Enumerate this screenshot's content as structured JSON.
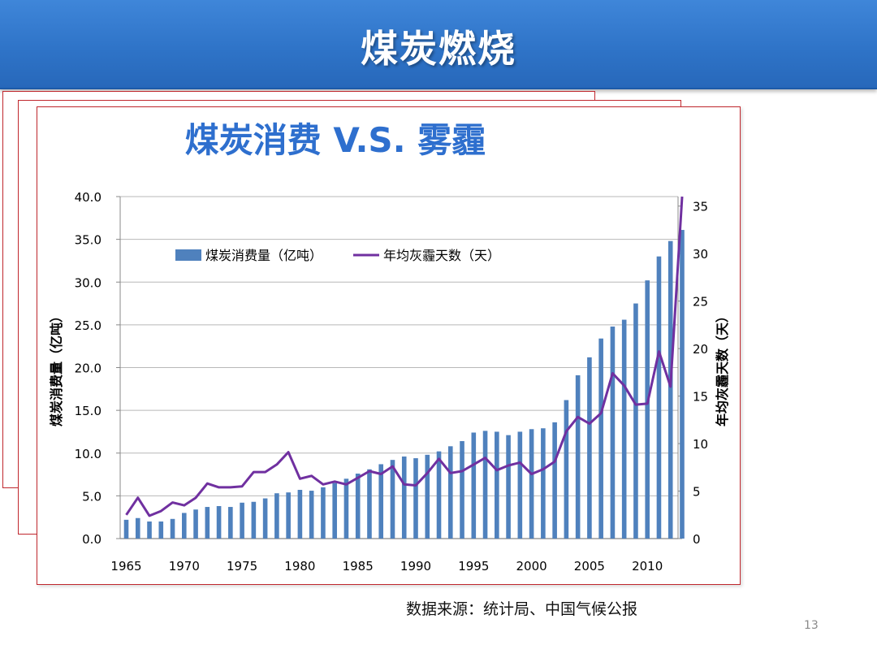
{
  "slide": {
    "title": "煤炭燃烧",
    "source": "数据来源：统计局、中国气候公报",
    "page_number": "13",
    "header_color": "#2f74c8",
    "frame_color": "#c0272d"
  },
  "chart_data": {
    "type": "bar",
    "title": "煤炭消费 V.S. 雾霾",
    "ylabel": "煤炭消费量（亿吨）",
    "y2label": "年均灰霾天数（天）",
    "ylim": [
      0,
      40
    ],
    "y2lim": [
      0,
      36
    ],
    "yticks": [
      "0.0",
      "5.0",
      "10.0",
      "15.0",
      "20.0",
      "25.0",
      "30.0",
      "35.0",
      "40.0"
    ],
    "y2ticks": [
      "0",
      "5",
      "10",
      "15",
      "20",
      "25",
      "30",
      "35"
    ],
    "xticks": [
      "1965",
      "1970",
      "1975",
      "1980",
      "1985",
      "1990",
      "1995",
      "2000",
      "2005",
      "2010"
    ],
    "grid": true,
    "legend": "top-left",
    "x": [
      1965,
      1966,
      1967,
      1968,
      1969,
      1970,
      1971,
      1972,
      1973,
      1974,
      1975,
      1976,
      1977,
      1978,
      1979,
      1980,
      1981,
      1982,
      1983,
      1984,
      1985,
      1986,
      1987,
      1988,
      1989,
      1990,
      1991,
      1992,
      1993,
      1994,
      1995,
      1996,
      1997,
      1998,
      1999,
      2000,
      2001,
      2002,
      2003,
      2004,
      2005,
      2006,
      2007,
      2008,
      2009,
      2010,
      2011,
      2012,
      2013
    ],
    "series": [
      {
        "name": "煤炭消费量（亿吨）",
        "type": "bar",
        "axis": "left",
        "color": "#4f81bd",
        "values": [
          2.2,
          2.4,
          2.0,
          2.0,
          2.3,
          3.0,
          3.4,
          3.7,
          3.8,
          3.7,
          4.2,
          4.3,
          4.7,
          5.3,
          5.4,
          5.7,
          5.6,
          6.0,
          6.5,
          7.0,
          7.6,
          8.1,
          8.7,
          9.2,
          9.6,
          9.4,
          9.8,
          10.2,
          10.8,
          11.4,
          12.4,
          12.6,
          12.5,
          12.1,
          12.5,
          12.8,
          12.9,
          13.6,
          16.2,
          19.1,
          21.2,
          23.4,
          24.8,
          25.6,
          27.5,
          30.2,
          33.0,
          34.8,
          36.1
        ]
      },
      {
        "name": "年均灰霾天数（天）",
        "type": "line",
        "axis": "right",
        "color": "#7030a0",
        "values": [
          2.5,
          4.3,
          2.4,
          2.9,
          3.8,
          3.5,
          4.3,
          5.8,
          5.4,
          5.4,
          5.5,
          7.0,
          7.0,
          7.8,
          9.1,
          6.3,
          6.6,
          5.7,
          6.0,
          5.7,
          6.4,
          7.1,
          6.8,
          7.6,
          5.7,
          5.6,
          6.9,
          8.4,
          6.9,
          7.1,
          7.8,
          8.5,
          7.2,
          7.7,
          8.0,
          6.8,
          7.3,
          8.1,
          11.3,
          12.8,
          12.1,
          13.2,
          17.4,
          16.1,
          14.1,
          14.2,
          19.7,
          16.0,
          36.0
        ]
      }
    ]
  }
}
